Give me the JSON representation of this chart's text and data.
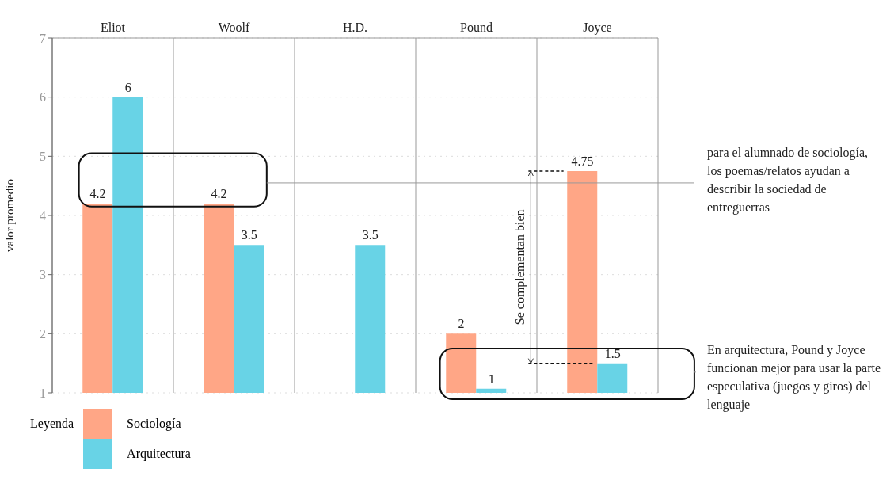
{
  "chart_data": {
    "type": "bar",
    "ylabel": "valor promedio",
    "legend_title": "Leyenda",
    "categories": [
      "Eliot",
      "Woolf",
      "H.D.",
      "Pound",
      "Joyce"
    ],
    "series": [
      {
        "name": "Sociología",
        "color": "#ffa686",
        "values": [
          4.2,
          4.2,
          null,
          2,
          4.75
        ],
        "value_labels": [
          "4.2",
          "4.2",
          null,
          "2",
          "4.75"
        ]
      },
      {
        "name": "Arquitectura",
        "color": "#68d3e6",
        "values": [
          6,
          3.5,
          3.5,
          1.07,
          1.5
        ],
        "value_labels": [
          "6",
          "3.5",
          "3.5",
          "1",
          "1.5"
        ]
      }
    ],
    "ylim": [
      1,
      7
    ],
    "yticks": [
      1,
      2,
      3,
      4,
      5,
      6,
      7
    ],
    "grid": true,
    "legend": "bottom left",
    "annotations": [
      "para el alumnado de sociología, los poemas/relatos ayudan  a describir la sociedad de entreguerras",
      "En arquitectura, Pound y Joyce funcionan mejor para usar la parte especulativa (juegos y giros) del lenguaje",
      "Se complementan bien"
    ]
  }
}
